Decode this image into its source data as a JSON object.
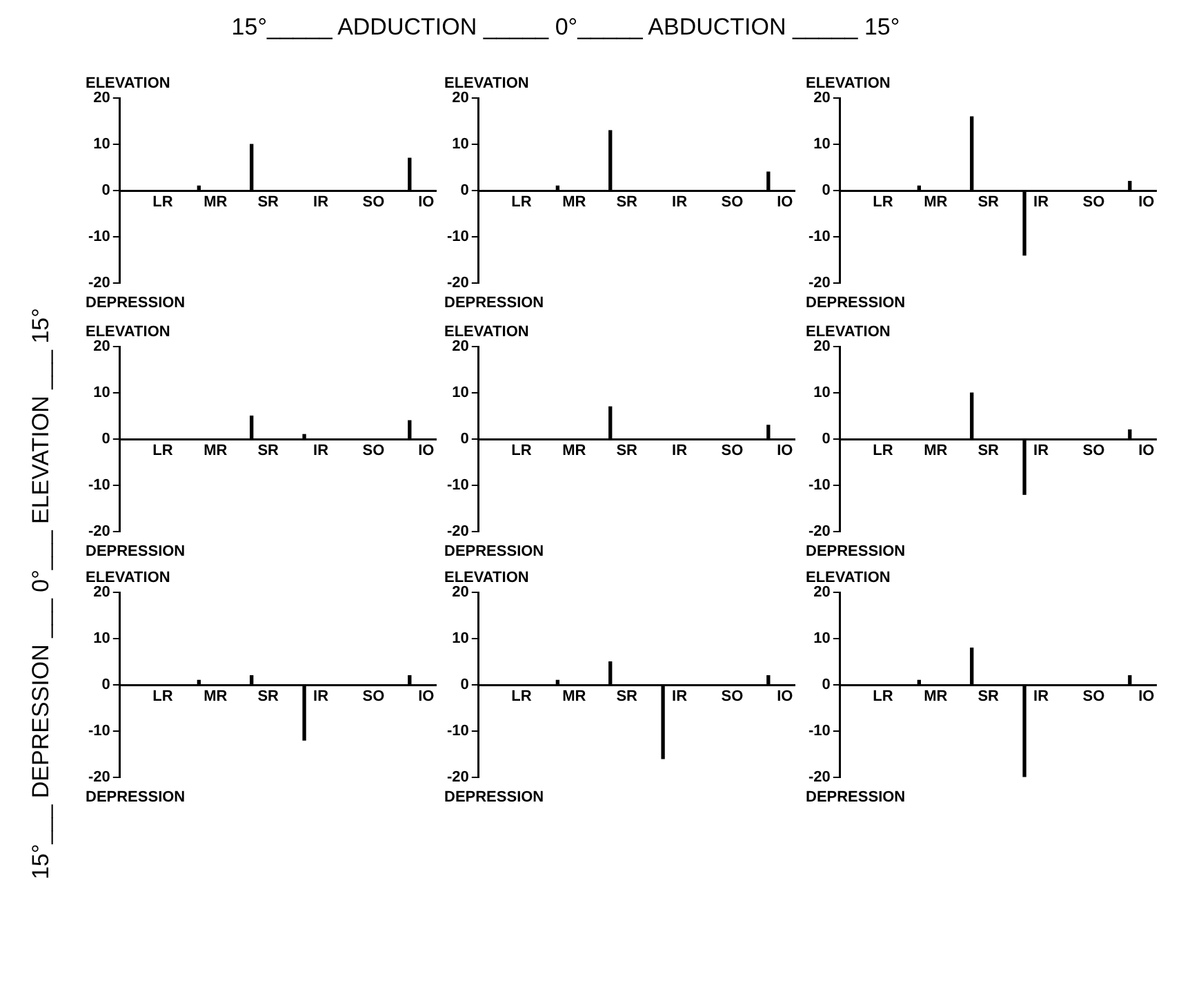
{
  "chart_data": [
    {
      "type": "other",
      "title": "15°_____ ADDUCTION _____ 0°_____ ABDUCTION _____ 15°",
      "ylabel": "15°___ DEPRESSION ___ 0°___ ELEVATION ___ 15°"
    },
    {
      "type": "bar",
      "title": "ELEVATION",
      "xlabel": "DEPRESSION",
      "categories": [
        "LR",
        "MR",
        "SR",
        "IR",
        "SO",
        "IO"
      ],
      "values": [
        0,
        1,
        10,
        0,
        0,
        7
      ],
      "color": "#000000",
      "ylim": [
        -20,
        20
      ],
      "yticks": [
        -20,
        -10,
        0,
        10,
        20
      ]
    },
    {
      "type": "bar",
      "title": "ELEVATION",
      "xlabel": "DEPRESSION",
      "categories": [
        "LR",
        "MR",
        "SR",
        "IR",
        "SO",
        "IO"
      ],
      "values": [
        0,
        1,
        13,
        0,
        0,
        4
      ],
      "color": "#000000",
      "ylim": [
        -20,
        20
      ],
      "yticks": [
        -20,
        -10,
        0,
        10,
        20
      ]
    },
    {
      "type": "bar",
      "title": "ELEVATION",
      "xlabel": "DEPRESSION",
      "categories": [
        "LR",
        "MR",
        "SR",
        "IR",
        "SO",
        "IO"
      ],
      "values": [
        0,
        1,
        16,
        -14,
        0,
        2
      ],
      "color": "#000000",
      "ylim": [
        -20,
        20
      ],
      "yticks": [
        -20,
        -10,
        0,
        10,
        20
      ]
    },
    {
      "type": "bar",
      "title": "ELEVATION",
      "xlabel": "DEPRESSION",
      "categories": [
        "LR",
        "MR",
        "SR",
        "IR",
        "SO",
        "IO"
      ],
      "values": [
        0,
        0,
        5,
        1,
        0,
        4
      ],
      "color": "#000000",
      "ylim": [
        -20,
        20
      ],
      "yticks": [
        -20,
        -10,
        0,
        10,
        20
      ]
    },
    {
      "type": "bar",
      "title": "ELEVATION",
      "xlabel": "DEPRESSION",
      "categories": [
        "LR",
        "MR",
        "SR",
        "IR",
        "SO",
        "IO"
      ],
      "values": [
        0,
        0,
        7,
        0,
        0,
        3
      ],
      "color": "#000000",
      "ylim": [
        -20,
        20
      ],
      "yticks": [
        -20,
        -10,
        0,
        10,
        20
      ]
    },
    {
      "type": "bar",
      "title": "ELEVATION",
      "xlabel": "DEPRESSION",
      "categories": [
        "LR",
        "MR",
        "SR",
        "IR",
        "SO",
        "IO"
      ],
      "values": [
        0,
        0,
        10,
        -12,
        0,
        2
      ],
      "color": "#000000",
      "ylim": [
        -20,
        20
      ],
      "yticks": [
        -20,
        -10,
        0,
        10,
        20
      ]
    },
    {
      "type": "bar",
      "title": "ELEVATION",
      "xlabel": "DEPRESSION",
      "categories": [
        "LR",
        "MR",
        "SR",
        "IR",
        "SO",
        "IO"
      ],
      "values": [
        0,
        1,
        2,
        -12,
        0,
        2
      ],
      "color": "#000000",
      "ylim": [
        -20,
        20
      ],
      "yticks": [
        -20,
        -10,
        0,
        10,
        20
      ]
    },
    {
      "type": "bar",
      "title": "ELEVATION",
      "xlabel": "DEPRESSION",
      "categories": [
        "LR",
        "MR",
        "SR",
        "IR",
        "SO",
        "IO"
      ],
      "values": [
        0,
        1,
        5,
        -16,
        0,
        2
      ],
      "color": "#000000",
      "ylim": [
        -20,
        20
      ],
      "yticks": [
        -20,
        -10,
        0,
        10,
        20
      ]
    },
    {
      "type": "bar",
      "title": "ELEVATION",
      "xlabel": "DEPRESSION",
      "categories": [
        "LR",
        "MR",
        "SR",
        "IR",
        "SO",
        "IO"
      ],
      "values": [
        0,
        1,
        8,
        -20,
        0,
        2
      ],
      "color": "#000000",
      "ylim": [
        -20,
        20
      ],
      "yticks": [
        -20,
        -10,
        0,
        10,
        20
      ]
    }
  ]
}
